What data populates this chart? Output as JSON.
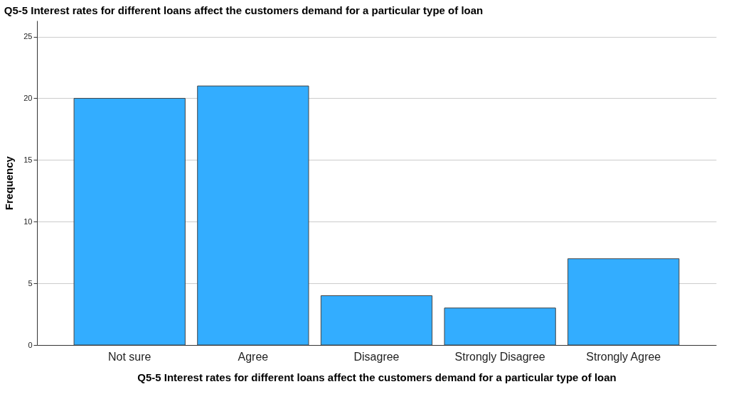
{
  "chart_data": {
    "type": "bar",
    "title": "Q5-5 Interest rates for different loans affect the customers demand for a particular type of loan",
    "xlabel": "Q5-5 Interest rates for different loans affect the customers demand for a particular type of loan",
    "ylabel": "Frequency",
    "categories": [
      "Not sure",
      "Agree",
      "Disagree",
      "Strongly Disagree",
      "Strongly Agree"
    ],
    "values": [
      20,
      21,
      4,
      3,
      7
    ],
    "color": "#33adff",
    "ylim": [
      0,
      26.3
    ],
    "yticks": [
      0,
      5,
      10,
      15,
      20,
      25
    ],
    "grid": "y"
  }
}
